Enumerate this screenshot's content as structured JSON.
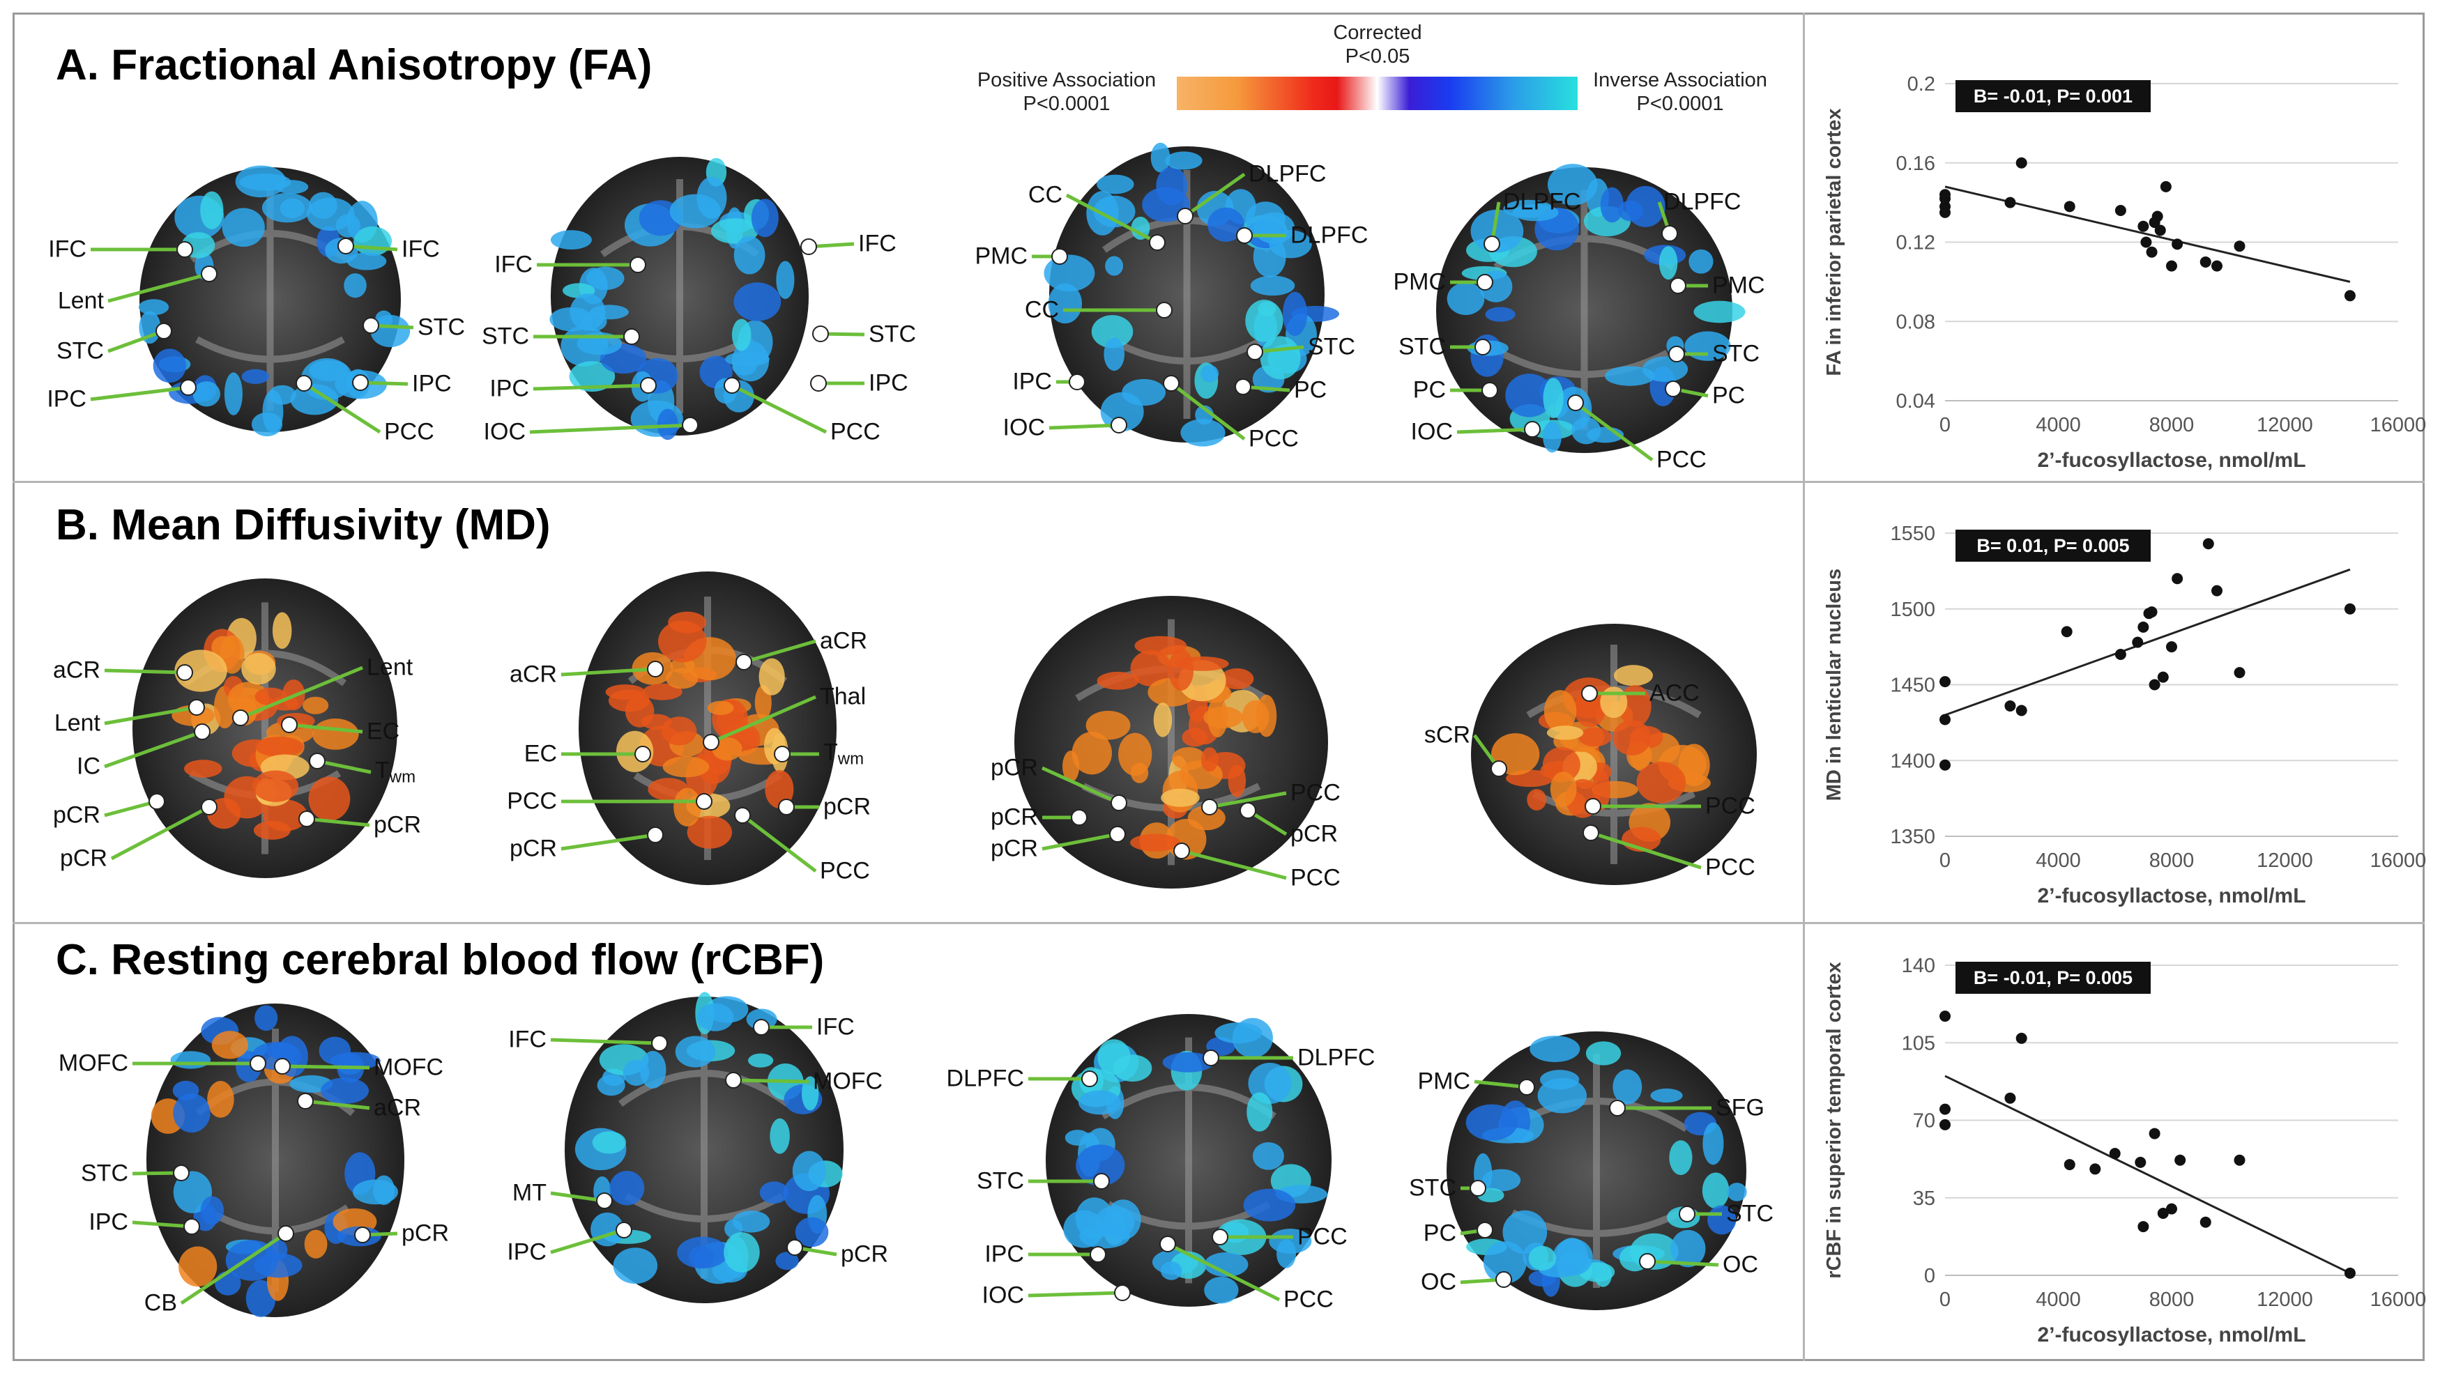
{
  "panels": {
    "fa": {
      "title": "A. Fractional Anisotropy (FA)"
    },
    "md": {
      "title": "B. Mean Diffusivity (MD)"
    },
    "rcbf": {
      "title": "C. Resting cerebral blood flow (rCBF)"
    }
  },
  "legend": {
    "corrected_line1": "Corrected",
    "corrected_line2": "P<0.05",
    "positive_line1": "Positive Association",
    "positive_line2": "P<0.0001",
    "inverse_line1": "Inverse Association",
    "inverse_line2": "P<0.0001"
  },
  "colors": {
    "label_line": "#6cbf3a",
    "marker_fill": "#ffffff",
    "blue_map": "#2ea9ee",
    "orange_map": "#f0821e",
    "brain_bg": "#2b2b2b"
  },
  "slices": {
    "a1": {
      "labels": [
        "IFC",
        "IFC",
        "Lent",
        "STC",
        "STC",
        "IPC",
        "IPC",
        "PCC"
      ]
    },
    "a2": {
      "labels": [
        "IFC",
        "IFC",
        "STC",
        "STC",
        "IPC",
        "IPC",
        "IOC",
        "PCC"
      ]
    },
    "a3": {
      "labels": [
        "DLPFC",
        "CC",
        "PMC",
        "DLPFC",
        "CC",
        "STC",
        "IPC",
        "PC",
        "IOC",
        "PCC"
      ]
    },
    "a4": {
      "labels": [
        "DLPFC",
        "DLPFC",
        "PMC",
        "PMC",
        "STC",
        "STC",
        "PC",
        "PC",
        "IOC",
        "PCC"
      ]
    },
    "b1": {
      "labels": [
        "aCR",
        "Lent",
        "Lent",
        "EC",
        "IC",
        "T",
        "pCR",
        "pCR",
        "pCR"
      ],
      "tsub": "wm"
    },
    "b2": {
      "labels": [
        "aCR",
        "aCR",
        "Thal",
        "EC",
        "T",
        "PCC",
        "pCR",
        "pCR",
        "PCC"
      ],
      "tsub": "wm"
    },
    "b3": {
      "labels": [
        "pCR",
        "pCR",
        "PCC",
        "pCR",
        "pCR",
        "PCC"
      ]
    },
    "b4": {
      "labels": [
        "ACC",
        "sCR",
        "PCC",
        "PCC"
      ]
    },
    "c1": {
      "labels": [
        "MOFC",
        "MOFC",
        "aCR",
        "STC",
        "IPC",
        "pCR",
        "CB"
      ]
    },
    "c2": {
      "labels": [
        "IFC",
        "IFC",
        "MOFC",
        "MT",
        "IPC",
        "pCR"
      ]
    },
    "c3": {
      "labels": [
        "DLPFC",
        "DLPFC",
        "STC",
        "IPC",
        "PCC",
        "IOC",
        "PCC"
      ]
    },
    "c4": {
      "labels": [
        "PMC",
        "SFG",
        "STC",
        "STC",
        "PC",
        "OC",
        "OC"
      ]
    }
  },
  "chart_data": [
    {
      "type": "scatter",
      "stat": "B= -0.01, P= 0.001",
      "xlabel": "2’-fucosyllactose, nmol/mL",
      "ylabel": "FA in inferior parietal cortex",
      "xlim": [
        0,
        16000
      ],
      "ylim": [
        0.04,
        0.2
      ],
      "xticks": [
        0,
        4000,
        8000,
        12000,
        16000
      ],
      "yticks": [
        0.04,
        0.08,
        0.12,
        0.16,
        0.2
      ],
      "xtick_labels": [
        "0",
        "4000",
        "8000",
        "12000",
        "16000"
      ],
      "ytick_labels": [
        "0.04",
        "0.08",
        "0.12",
        "0.16",
        "0.2"
      ],
      "points": [
        [
          0,
          0.135
        ],
        [
          0,
          0.138
        ],
        [
          0,
          0.142
        ],
        [
          0,
          0.144
        ],
        [
          2300,
          0.14
        ],
        [
          2700,
          0.16
        ],
        [
          4400,
          0.138
        ],
        [
          6200,
          0.136
        ],
        [
          7000,
          0.128
        ],
        [
          7100,
          0.12
        ],
        [
          7300,
          0.115
        ],
        [
          7400,
          0.13
        ],
        [
          7500,
          0.133
        ],
        [
          7600,
          0.126
        ],
        [
          7800,
          0.148
        ],
        [
          8000,
          0.108
        ],
        [
          8200,
          0.119
        ],
        [
          9200,
          0.11
        ],
        [
          9600,
          0.108
        ],
        [
          10400,
          0.118
        ],
        [
          14300,
          0.093
        ]
      ],
      "fit": [
        [
          0,
          0.148
        ],
        [
          14300,
          0.1
        ]
      ]
    },
    {
      "type": "scatter",
      "stat": "B= 0.01, P= 0.005",
      "xlabel": "2’-fucosyllactose, nmol/mL",
      "ylabel": "MD in lenticular nucleus",
      "xlim": [
        0,
        16000
      ],
      "ylim": [
        1350,
        1550
      ],
      "xticks": [
        0,
        4000,
        8000,
        12000,
        16000
      ],
      "yticks": [
        1350,
        1400,
        1450,
        1500,
        1550
      ],
      "xtick_labels": [
        "0",
        "4000",
        "8000",
        "12000",
        "16000"
      ],
      "ytick_labels": [
        "1350",
        "1400",
        "1450",
        "1500",
        "1550"
      ],
      "points": [
        [
          0,
          1397
        ],
        [
          0,
          1427
        ],
        [
          0,
          1452
        ],
        [
          2300,
          1436
        ],
        [
          2700,
          1433
        ],
        [
          4300,
          1485
        ],
        [
          6200,
          1470
        ],
        [
          6800,
          1478
        ],
        [
          7000,
          1488
        ],
        [
          7200,
          1497
        ],
        [
          7300,
          1498
        ],
        [
          7400,
          1450
        ],
        [
          7700,
          1455
        ],
        [
          8000,
          1475
        ],
        [
          8200,
          1520
        ],
        [
          9300,
          1543
        ],
        [
          9600,
          1512
        ],
        [
          10400,
          1458
        ],
        [
          14300,
          1500
        ]
      ],
      "fit": [
        [
          0,
          1430
        ],
        [
          14300,
          1526
        ]
      ]
    },
    {
      "type": "scatter",
      "stat": "B= -0.01, P= 0.005",
      "xlabel": "2’-fucosyllactose, nmol/mL",
      "ylabel": "rCBF in superior temporal cortex",
      "xlim": [
        0,
        16000
      ],
      "ylim": [
        0,
        140
      ],
      "xticks": [
        0,
        4000,
        8000,
        12000,
        16000
      ],
      "yticks": [
        0,
        35,
        70,
        105,
        140
      ],
      "xtick_labels": [
        "0",
        "4000",
        "8000",
        "12000",
        "16000"
      ],
      "ytick_labels": [
        "0",
        "35",
        "70",
        "105",
        "140"
      ],
      "points": [
        [
          0,
          117
        ],
        [
          0,
          75
        ],
        [
          0,
          68
        ],
        [
          2300,
          80
        ],
        [
          2700,
          107
        ],
        [
          4400,
          50
        ],
        [
          5300,
          48
        ],
        [
          6000,
          55
        ],
        [
          6900,
          51
        ],
        [
          7000,
          22
        ],
        [
          7400,
          64
        ],
        [
          7700,
          28
        ],
        [
          8000,
          30
        ],
        [
          8300,
          52
        ],
        [
          9200,
          24
        ],
        [
          10400,
          52
        ],
        [
          14300,
          1
        ]
      ],
      "fit": [
        [
          0,
          90
        ],
        [
          14300,
          1
        ]
      ]
    }
  ]
}
